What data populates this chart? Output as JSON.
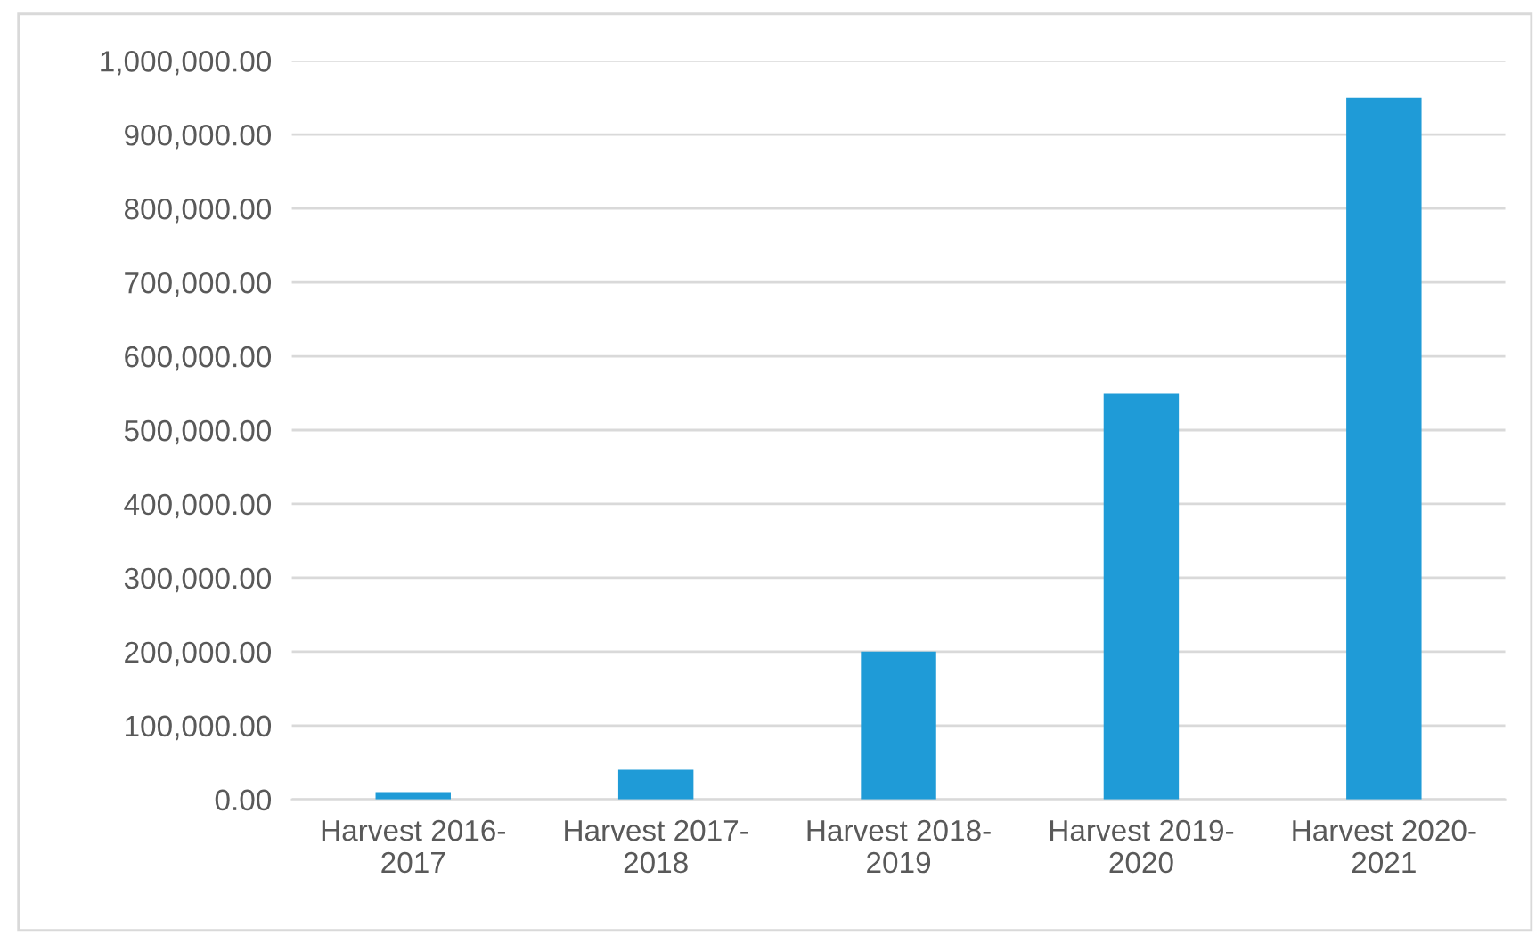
{
  "chart_data": {
    "type": "bar",
    "categories": [
      "Harvest 2016-2017",
      "Harvest 2017-2018",
      "Harvest 2018-2019",
      "Harvest 2019-2020",
      "Harvest 2020-2021"
    ],
    "values": [
      10000,
      40000,
      200000,
      550000,
      950000
    ],
    "color": "#1f9bd7",
    "ylim": [
      0,
      1000000
    ],
    "yticks": [
      {
        "value": 0,
        "label": "0.00"
      },
      {
        "value": 100000,
        "label": "100,000.00"
      },
      {
        "value": 200000,
        "label": "200,000.00"
      },
      {
        "value": 300000,
        "label": "300,000.00"
      },
      {
        "value": 400000,
        "label": "400,000.00"
      },
      {
        "value": 500000,
        "label": "500,000.00"
      },
      {
        "value": 600000,
        "label": "600,000.00"
      },
      {
        "value": 700000,
        "label": "700,000.00"
      },
      {
        "value": 800000,
        "label": "800,000.00"
      },
      {
        "value": 900000,
        "label": "900,000.00"
      },
      {
        "value": 1000000,
        "label": "1,000,000.00"
      }
    ],
    "grid": "y"
  }
}
